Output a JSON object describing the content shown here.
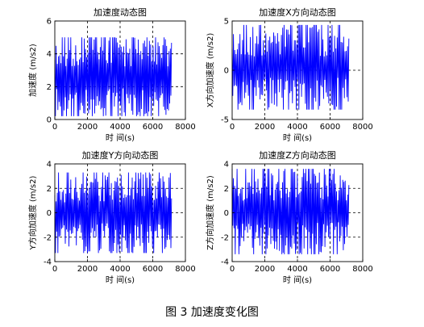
{
  "figure": {
    "caption": "图 3  加速度变化图"
  },
  "chart_data": [
    {
      "type": "line",
      "title": "加速度动态图",
      "xlabel": "时 间(s)",
      "ylabel": "加速度 (m/s2)",
      "xlim": [
        0,
        8000
      ],
      "ylim": [
        0,
        6
      ],
      "xticks": [
        0,
        2000,
        4000,
        6000,
        8000
      ],
      "yticks": [
        0,
        2,
        4,
        6
      ],
      "grid": "dashed",
      "series_color": "#0000ff",
      "series": [
        {
          "x_range": [
            0,
            7150
          ],
          "y_range": [
            0.2,
            5.0
          ],
          "approx_cycles": 95,
          "seed": 11,
          "values": []
        }
      ]
    },
    {
      "type": "line",
      "title": "加速度X方向动态图",
      "xlabel": "时 间(s)",
      "ylabel": "X方向加速度 (m/s2)",
      "xlim": [
        0,
        8000
      ],
      "ylim": [
        -5,
        5
      ],
      "xticks": [
        0,
        2000,
        4000,
        6000,
        8000
      ],
      "yticks": [
        -5,
        0,
        5
      ],
      "grid": "dashed",
      "series_color": "#0000ff",
      "series": [
        {
          "x_range": [
            0,
            7150
          ],
          "y_range": [
            -4.0,
            4.6
          ],
          "approx_cycles": 90,
          "seed": 23,
          "values": []
        }
      ]
    },
    {
      "type": "line",
      "title": "加速度Y方向动态图",
      "xlabel": "时 间(s)",
      "ylabel": "Y方向加速度 (m/s2)",
      "xlim": [
        0,
        8000
      ],
      "ylim": [
        -4,
        4
      ],
      "xticks": [
        0,
        2000,
        4000,
        6000,
        8000
      ],
      "yticks": [
        -4,
        -2,
        0,
        2,
        4
      ],
      "grid": "dashed",
      "series_color": "#0000ff",
      "series": [
        {
          "x_range": [
            0,
            7150
          ],
          "y_range": [
            -3.3,
            3.3
          ],
          "approx_cycles": 95,
          "seed": 37,
          "values": []
        }
      ]
    },
    {
      "type": "line",
      "title": "加速度Z方向动态图",
      "xlabel": "时 间(s)",
      "ylabel": "Z方向加速度 (m/s2)",
      "xlim": [
        0,
        8000
      ],
      "ylim": [
        -4,
        4
      ],
      "xticks": [
        0,
        2000,
        4000,
        6000,
        8000
      ],
      "yticks": [
        -4,
        -2,
        0,
        2,
        4
      ],
      "grid": "dashed",
      "series_color": "#0000ff",
      "series": [
        {
          "x_range": [
            0,
            7150
          ],
          "y_range": [
            -3.4,
            3.6
          ],
          "approx_cycles": 95,
          "seed": 53,
          "values": []
        }
      ]
    }
  ]
}
